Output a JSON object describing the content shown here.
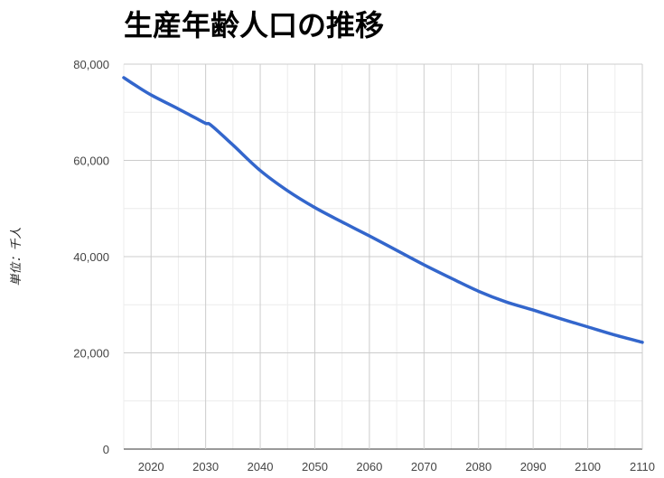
{
  "chart_data": {
    "type": "line",
    "title": "生産年齢人口の推移",
    "ylabel": "単位：千人",
    "xlabel": "",
    "xlim": [
      2015,
      2110
    ],
    "ylim": [
      0,
      80000
    ],
    "x_ticks": [
      "2020",
      "2030",
      "2040",
      "2050",
      "2060",
      "2070",
      "2080",
      "2090",
      "2100",
      "2110"
    ],
    "y_ticks": [
      "0",
      "20,000",
      "40,000",
      "60,000",
      "80,000"
    ],
    "grid": true,
    "legend": "none",
    "color": "#3366cc",
    "series": [
      {
        "x": [
          2015,
          2017,
          2020,
          2025,
          2028,
          2030,
          2031,
          2035,
          2040,
          2045,
          2050,
          2055,
          2060,
          2065,
          2070,
          2075,
          2080,
          2085,
          2090,
          2095,
          2100,
          2105,
          2110
        ],
        "values": [
          77200,
          75700,
          73600,
          70700,
          68900,
          67700,
          67300,
          63200,
          57900,
          53700,
          50200,
          47200,
          44300,
          41300,
          38300,
          35500,
          32800,
          30600,
          28900,
          27100,
          25400,
          23700,
          22200
        ]
      }
    ]
  }
}
